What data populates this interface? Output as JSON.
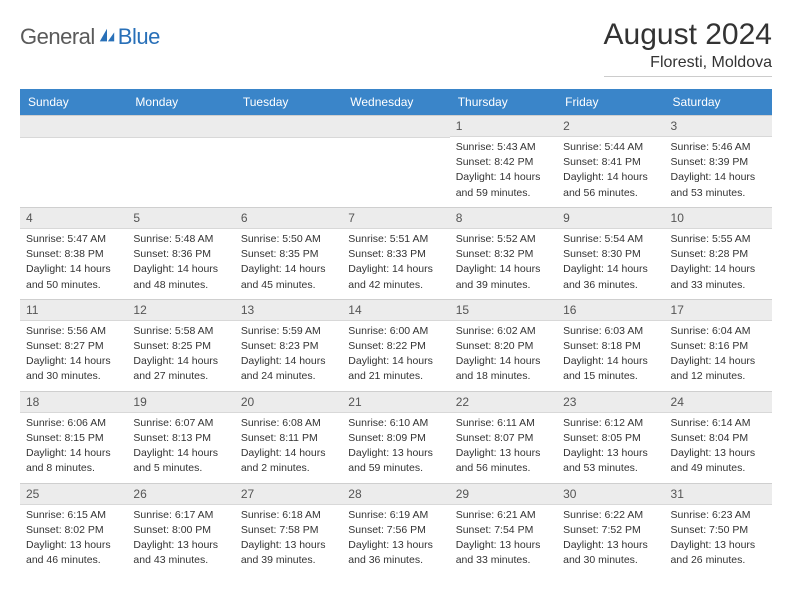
{
  "logo": {
    "text1": "General",
    "text2": "Blue",
    "color1": "#5a5a5a",
    "color2": "#2970b8"
  },
  "title": "August 2024",
  "location": "Floresti, Moldova",
  "weekdays": [
    "Sunday",
    "Monday",
    "Tuesday",
    "Wednesday",
    "Thursday",
    "Friday",
    "Saturday"
  ],
  "colors": {
    "header_bg": "#3a85c9",
    "header_text": "#ffffff",
    "daynum_bg": "#ececec",
    "border": "#cfcfcf",
    "text": "#333333"
  },
  "grid": [
    [
      null,
      null,
      null,
      null,
      {
        "n": "1",
        "sr": "Sunrise: 5:43 AM",
        "ss": "Sunset: 8:42 PM",
        "d1": "Daylight: 14 hours",
        "d2": "and 59 minutes."
      },
      {
        "n": "2",
        "sr": "Sunrise: 5:44 AM",
        "ss": "Sunset: 8:41 PM",
        "d1": "Daylight: 14 hours",
        "d2": "and 56 minutes."
      },
      {
        "n": "3",
        "sr": "Sunrise: 5:46 AM",
        "ss": "Sunset: 8:39 PM",
        "d1": "Daylight: 14 hours",
        "d2": "and 53 minutes."
      }
    ],
    [
      {
        "n": "4",
        "sr": "Sunrise: 5:47 AM",
        "ss": "Sunset: 8:38 PM",
        "d1": "Daylight: 14 hours",
        "d2": "and 50 minutes."
      },
      {
        "n": "5",
        "sr": "Sunrise: 5:48 AM",
        "ss": "Sunset: 8:36 PM",
        "d1": "Daylight: 14 hours",
        "d2": "and 48 minutes."
      },
      {
        "n": "6",
        "sr": "Sunrise: 5:50 AM",
        "ss": "Sunset: 8:35 PM",
        "d1": "Daylight: 14 hours",
        "d2": "and 45 minutes."
      },
      {
        "n": "7",
        "sr": "Sunrise: 5:51 AM",
        "ss": "Sunset: 8:33 PM",
        "d1": "Daylight: 14 hours",
        "d2": "and 42 minutes."
      },
      {
        "n": "8",
        "sr": "Sunrise: 5:52 AM",
        "ss": "Sunset: 8:32 PM",
        "d1": "Daylight: 14 hours",
        "d2": "and 39 minutes."
      },
      {
        "n": "9",
        "sr": "Sunrise: 5:54 AM",
        "ss": "Sunset: 8:30 PM",
        "d1": "Daylight: 14 hours",
        "d2": "and 36 minutes."
      },
      {
        "n": "10",
        "sr": "Sunrise: 5:55 AM",
        "ss": "Sunset: 8:28 PM",
        "d1": "Daylight: 14 hours",
        "d2": "and 33 minutes."
      }
    ],
    [
      {
        "n": "11",
        "sr": "Sunrise: 5:56 AM",
        "ss": "Sunset: 8:27 PM",
        "d1": "Daylight: 14 hours",
        "d2": "and 30 minutes."
      },
      {
        "n": "12",
        "sr": "Sunrise: 5:58 AM",
        "ss": "Sunset: 8:25 PM",
        "d1": "Daylight: 14 hours",
        "d2": "and 27 minutes."
      },
      {
        "n": "13",
        "sr": "Sunrise: 5:59 AM",
        "ss": "Sunset: 8:23 PM",
        "d1": "Daylight: 14 hours",
        "d2": "and 24 minutes."
      },
      {
        "n": "14",
        "sr": "Sunrise: 6:00 AM",
        "ss": "Sunset: 8:22 PM",
        "d1": "Daylight: 14 hours",
        "d2": "and 21 minutes."
      },
      {
        "n": "15",
        "sr": "Sunrise: 6:02 AM",
        "ss": "Sunset: 8:20 PM",
        "d1": "Daylight: 14 hours",
        "d2": "and 18 minutes."
      },
      {
        "n": "16",
        "sr": "Sunrise: 6:03 AM",
        "ss": "Sunset: 8:18 PM",
        "d1": "Daylight: 14 hours",
        "d2": "and 15 minutes."
      },
      {
        "n": "17",
        "sr": "Sunrise: 6:04 AM",
        "ss": "Sunset: 8:16 PM",
        "d1": "Daylight: 14 hours",
        "d2": "and 12 minutes."
      }
    ],
    [
      {
        "n": "18",
        "sr": "Sunrise: 6:06 AM",
        "ss": "Sunset: 8:15 PM",
        "d1": "Daylight: 14 hours",
        "d2": "and 8 minutes."
      },
      {
        "n": "19",
        "sr": "Sunrise: 6:07 AM",
        "ss": "Sunset: 8:13 PM",
        "d1": "Daylight: 14 hours",
        "d2": "and 5 minutes."
      },
      {
        "n": "20",
        "sr": "Sunrise: 6:08 AM",
        "ss": "Sunset: 8:11 PM",
        "d1": "Daylight: 14 hours",
        "d2": "and 2 minutes."
      },
      {
        "n": "21",
        "sr": "Sunrise: 6:10 AM",
        "ss": "Sunset: 8:09 PM",
        "d1": "Daylight: 13 hours",
        "d2": "and 59 minutes."
      },
      {
        "n": "22",
        "sr": "Sunrise: 6:11 AM",
        "ss": "Sunset: 8:07 PM",
        "d1": "Daylight: 13 hours",
        "d2": "and 56 minutes."
      },
      {
        "n": "23",
        "sr": "Sunrise: 6:12 AM",
        "ss": "Sunset: 8:05 PM",
        "d1": "Daylight: 13 hours",
        "d2": "and 53 minutes."
      },
      {
        "n": "24",
        "sr": "Sunrise: 6:14 AM",
        "ss": "Sunset: 8:04 PM",
        "d1": "Daylight: 13 hours",
        "d2": "and 49 minutes."
      }
    ],
    [
      {
        "n": "25",
        "sr": "Sunrise: 6:15 AM",
        "ss": "Sunset: 8:02 PM",
        "d1": "Daylight: 13 hours",
        "d2": "and 46 minutes."
      },
      {
        "n": "26",
        "sr": "Sunrise: 6:17 AM",
        "ss": "Sunset: 8:00 PM",
        "d1": "Daylight: 13 hours",
        "d2": "and 43 minutes."
      },
      {
        "n": "27",
        "sr": "Sunrise: 6:18 AM",
        "ss": "Sunset: 7:58 PM",
        "d1": "Daylight: 13 hours",
        "d2": "and 39 minutes."
      },
      {
        "n": "28",
        "sr": "Sunrise: 6:19 AM",
        "ss": "Sunset: 7:56 PM",
        "d1": "Daylight: 13 hours",
        "d2": "and 36 minutes."
      },
      {
        "n": "29",
        "sr": "Sunrise: 6:21 AM",
        "ss": "Sunset: 7:54 PM",
        "d1": "Daylight: 13 hours",
        "d2": "and 33 minutes."
      },
      {
        "n": "30",
        "sr": "Sunrise: 6:22 AM",
        "ss": "Sunset: 7:52 PM",
        "d1": "Daylight: 13 hours",
        "d2": "and 30 minutes."
      },
      {
        "n": "31",
        "sr": "Sunrise: 6:23 AM",
        "ss": "Sunset: 7:50 PM",
        "d1": "Daylight: 13 hours",
        "d2": "and 26 minutes."
      }
    ]
  ]
}
